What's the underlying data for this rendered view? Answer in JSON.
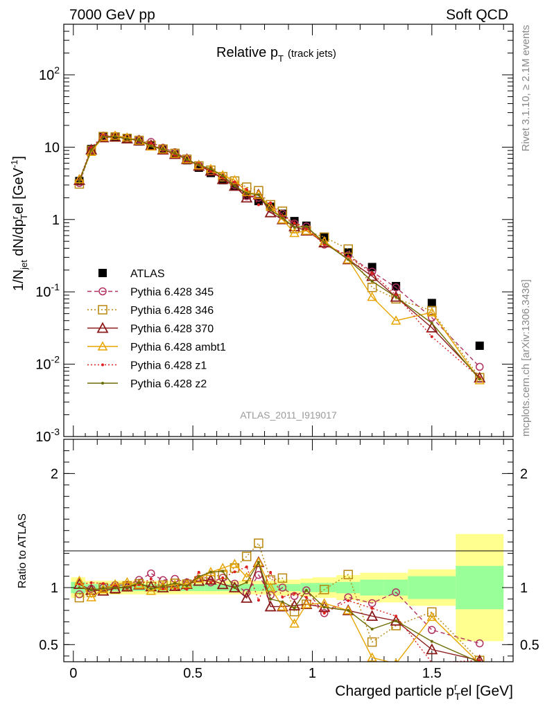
{
  "header": {
    "left_title": "7000 GeV pp",
    "right_title": "Soft QCD"
  },
  "side_labels": {
    "rivet": "Rivet 3.1.10, ≥ 2.1M events",
    "mcplots": "mcplots.cern.ch [arXiv:1306.3436]"
  },
  "chart_data": [
    {
      "type": "scatter",
      "title": "Relative pT (track jets)",
      "title_main": "Relative p",
      "title_sub": "T",
      "title_extra": "(track jets)",
      "ylabel": "1/N_jet dN/dp_T^rel [GeV^-1]",
      "ylabel_parts": {
        "a": "1/N",
        "b": "jet",
        "c": " dN/dp",
        "d": "r",
        "e": "T",
        "f": "el [GeV",
        "g": "-1",
        "h": "]"
      },
      "yscale": "log",
      "ylim": [
        0.001,
        500
      ],
      "xlim": [
        -0.04,
        1.84
      ],
      "ytick_labels": [
        "10^-3",
        "10^-2",
        "10^-1",
        "1",
        "10",
        "10^2"
      ],
      "analysis_label": "ATLAS_2011_I919017",
      "legend_position": "lower-left",
      "x": [
        0.025,
        0.075,
        0.125,
        0.175,
        0.225,
        0.275,
        0.325,
        0.375,
        0.425,
        0.475,
        0.525,
        0.575,
        0.625,
        0.675,
        0.725,
        0.775,
        0.825,
        0.875,
        0.925,
        0.975,
        1.05,
        1.15,
        1.25,
        1.35,
        1.5,
        1.7
      ],
      "series": [
        {
          "name": "ATLAS",
          "color": "#000000",
          "marker": "square",
          "line": "none",
          "values": [
            3.4,
            9.4,
            14.0,
            14.0,
            13.0,
            12.0,
            10.5,
            9.2,
            7.9,
            6.6,
            5.2,
            4.4,
            3.5,
            2.9,
            2.2,
            1.8,
            1.5,
            1.2,
            0.95,
            0.82,
            0.58,
            0.35,
            0.22,
            0.12,
            0.07,
            0.018
          ]
        },
        {
          "name": "Pythia 6.428 345",
          "color": "#b03060",
          "marker": "circle",
          "line": "dashed",
          "values": [
            3.2,
            9.3,
            14.0,
            14.3,
            13.3,
            12.8,
            11.8,
            9.8,
            8.5,
            6.9,
            5.6,
            4.6,
            3.8,
            3.0,
            2.1,
            2.0,
            1.4,
            1.2,
            0.88,
            0.8,
            0.45,
            0.32,
            0.19,
            0.115,
            0.044,
            0.0092
          ]
        },
        {
          "name": "Pythia 6.428 346",
          "color": "#b8860b",
          "marker": "square-open",
          "line": "dotted",
          "values": [
            3.1,
            9.0,
            14.0,
            13.8,
            13.2,
            12.4,
            10.6,
            9.4,
            8.2,
            6.8,
            5.5,
            4.8,
            3.9,
            3.4,
            2.8,
            2.5,
            1.6,
            1.3,
            0.75,
            0.7,
            0.57,
            0.39,
            0.115,
            0.08,
            0.055,
            0.0065
          ]
        },
        {
          "name": "Pythia 6.428 370",
          "color": "#8b1a1a",
          "marker": "triangle",
          "line": "solid",
          "values": [
            3.5,
            9.2,
            13.6,
            13.9,
            13.1,
            12.3,
            10.6,
            9.2,
            8.0,
            6.8,
            5.5,
            4.7,
            3.6,
            2.9,
            2.0,
            2.2,
            1.25,
            1.0,
            0.8,
            0.7,
            0.48,
            0.28,
            0.165,
            0.085,
            0.032,
            0.0065
          ]
        },
        {
          "name": "Pythia 6.428 ambt1",
          "color": "#e8a400",
          "marker": "triangle-open",
          "line": "solid",
          "values": [
            3.6,
            8.6,
            13.8,
            14.4,
            13.6,
            12.3,
            10.2,
            9.3,
            8.1,
            6.8,
            5.6,
            5.0,
            4.1,
            3.5,
            2.4,
            2.2,
            1.5,
            1.0,
            0.65,
            0.7,
            0.5,
            0.28,
            0.085,
            0.04,
            0.052,
            0.006
          ]
        },
        {
          "name": "Pythia 6.428 z1",
          "color": "#dd2020",
          "marker": "dot",
          "line": "dotted",
          "values": [
            3.5,
            9.8,
            14.5,
            14.2,
            12.9,
            12.3,
            11.3,
            9.1,
            7.8,
            6.5,
            5.9,
            4.6,
            3.8,
            3.3,
            2.6,
            1.6,
            1.7,
            1.1,
            0.9,
            0.75,
            0.45,
            0.31,
            0.18,
            0.09,
            0.024,
            0.0065
          ]
        },
        {
          "name": "Pythia 6.428 z2",
          "color": "#6b6b00",
          "marker": "dot",
          "line": "solid",
          "values": [
            3.4,
            9.2,
            13.9,
            14.0,
            13.0,
            12.5,
            10.4,
            9.3,
            8.2,
            6.7,
            5.7,
            5.0,
            4.0,
            2.9,
            2.3,
            2.2,
            1.35,
            1.05,
            0.78,
            0.8,
            0.48,
            0.28,
            0.14,
            0.085,
            0.037,
            0.0062
          ]
        }
      ]
    },
    {
      "type": "line",
      "ylabel": "Ratio to ATLAS",
      "xlabel": "Charged particle p_T^rel [GeV]",
      "xlabel_parts": {
        "a": "Charged particle p",
        "b": "r",
        "c": "T",
        "d": "el [GeV]"
      },
      "ylim": [
        0.35,
        2.3
      ],
      "xlim": [
        -0.04,
        1.84
      ],
      "ytick_labels": [
        "0.5",
        "1",
        "2"
      ],
      "xtick_labels": [
        "0",
        "0.5",
        "1",
        "1.5"
      ],
      "bands": {
        "edges": [
          -0.01,
          0.05,
          0.1,
          0.15,
          0.2,
          0.25,
          0.3,
          0.35,
          0.4,
          0.45,
          0.5,
          0.55,
          0.6,
          0.65,
          0.7,
          0.75,
          0.8,
          0.85,
          0.9,
          0.95,
          1.0,
          1.1,
          1.2,
          1.3,
          1.4,
          1.6,
          1.8
        ],
        "green": [
          0.05,
          0.03,
          0.03,
          0.03,
          0.03,
          0.03,
          0.03,
          0.03,
          0.03,
          0.03,
          0.03,
          0.03,
          0.03,
          0.03,
          0.03,
          0.03,
          0.03,
          0.03,
          0.03,
          0.04,
          0.04,
          0.05,
          0.07,
          0.07,
          0.1,
          0.19
        ],
        "yellow": [
          0.09,
          0.06,
          0.06,
          0.06,
          0.06,
          0.06,
          0.06,
          0.06,
          0.06,
          0.06,
          0.06,
          0.06,
          0.06,
          0.06,
          0.06,
          0.06,
          0.06,
          0.07,
          0.07,
          0.08,
          0.09,
          0.11,
          0.13,
          0.13,
          0.16,
          0.47
        ]
      }
    }
  ]
}
